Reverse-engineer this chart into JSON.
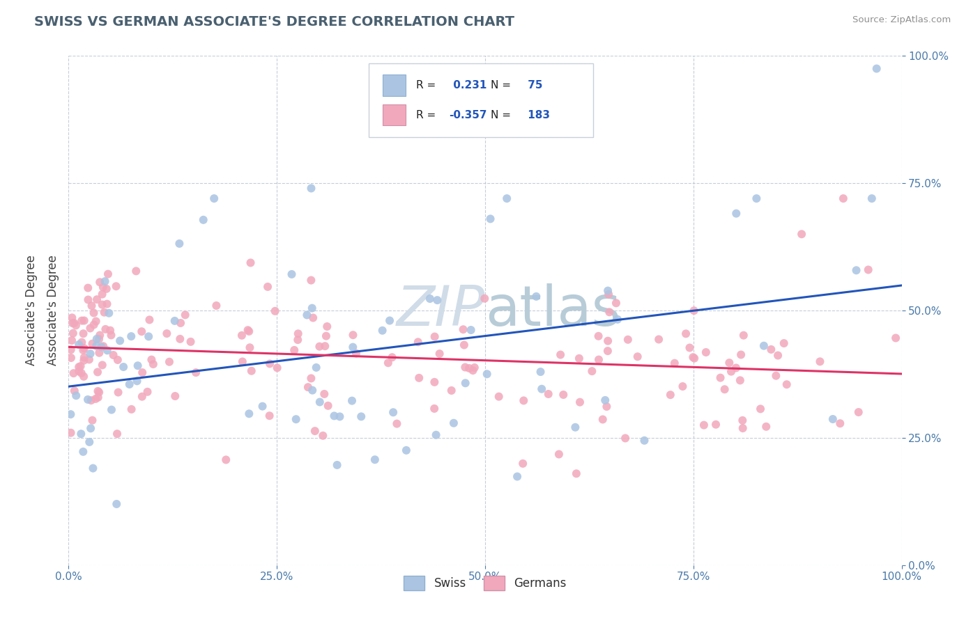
{
  "title": "SWISS VS GERMAN ASSOCIATE'S DEGREE CORRELATION CHART",
  "source": "Source: ZipAtlas.com",
  "ylabel": "Associate's Degree",
  "swiss_R": 0.231,
  "swiss_N": 75,
  "german_R": -0.357,
  "german_N": 183,
  "swiss_color": "#aac4e2",
  "german_color": "#f2a8bc",
  "swiss_line_color": "#2255bb",
  "german_line_color": "#dd3366",
  "background_color": "#ffffff",
  "grid_color": "#c0c8d4",
  "title_color": "#4a6070",
  "axis_tick_color": "#4a7aaa",
  "right_tick_color": "#4a7aaa",
  "watermark_color": "#d0dce8",
  "x_min": 0.0,
  "x_max": 1.0,
  "y_min": 0.0,
  "y_max": 1.0
}
